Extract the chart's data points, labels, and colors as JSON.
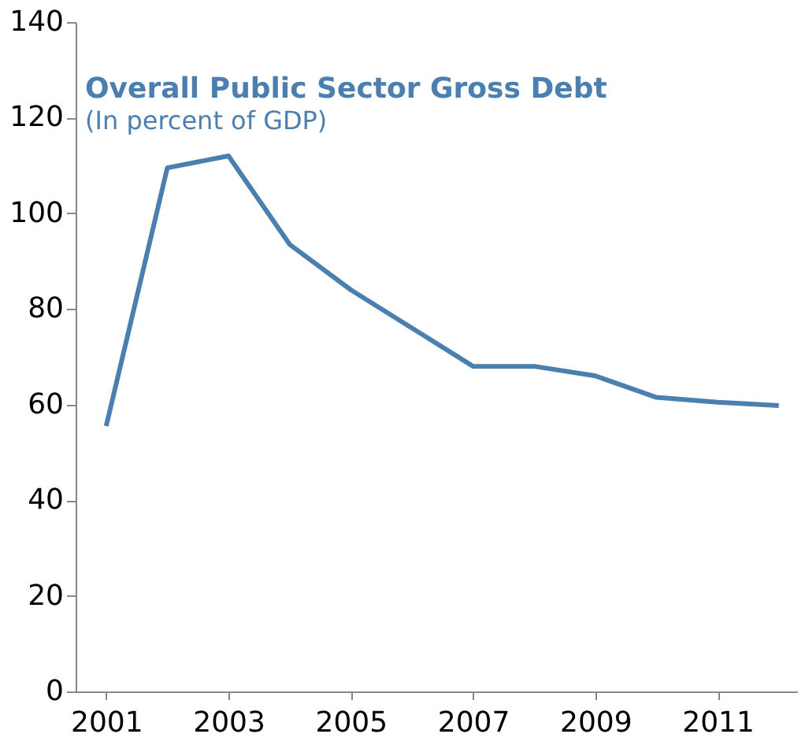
{
  "chart_data": {
    "type": "line",
    "title": "Overall Public Sector  Gross Debt",
    "subtitle": "(In percent of GDP)",
    "x": [
      2001,
      2002,
      2003,
      2004,
      2005,
      2006,
      2007,
      2008,
      2009,
      2010,
      2011,
      2012
    ],
    "series": [
      {
        "color": "#4a7fb0",
        "values": [
          55.5,
          109.5,
          112,
          93.5,
          84,
          76,
          68,
          68,
          66,
          61.5,
          60.5,
          59.8
        ]
      }
    ],
    "xlim": [
      2000.5,
      2012.3
    ],
    "xticks": [
      2001,
      2003,
      2005,
      2007,
      2009,
      2011
    ],
    "ylim": [
      0,
      140
    ],
    "yticks": [
      0,
      20,
      40,
      60,
      80,
      100,
      120,
      140
    ],
    "grid": false,
    "legend": false,
    "marker": "none",
    "line_style": "solid"
  }
}
